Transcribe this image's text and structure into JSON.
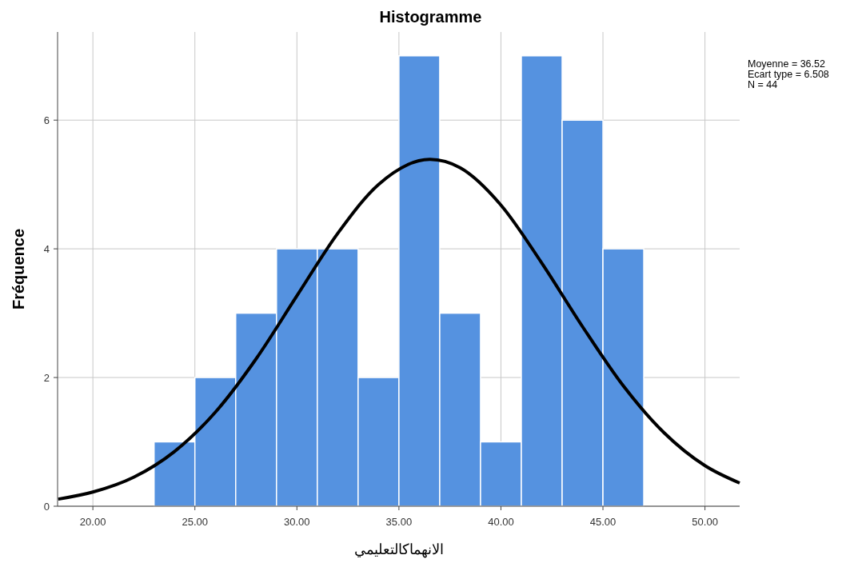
{
  "chart_data": {
    "type": "histogram",
    "title": "Histogramme",
    "xlabel": "الانهماكالتعليمي",
    "ylabel": "Fréquence",
    "series": [
      {
        "color": "#5592e0",
        "bins": [
          23,
          25,
          27,
          29,
          31,
          33,
          35,
          37,
          39,
          41,
          43,
          45,
          47
        ],
        "values": [
          1,
          2,
          3,
          4,
          4,
          2,
          7,
          3,
          1,
          7,
          6,
          4
        ]
      },
      {
        "type": "line",
        "color": "#000000",
        "x": [
          18.3,
          20,
          22,
          24,
          26,
          28,
          30,
          32,
          34,
          36.52,
          38,
          40,
          42,
          44,
          46,
          48,
          50,
          51.7
        ],
        "values": [
          0.11,
          0.22,
          0.45,
          0.85,
          1.46,
          2.29,
          3.27,
          4.24,
          5.0,
          5.39,
          5.26,
          4.68,
          3.78,
          2.79,
          1.87,
          1.14,
          0.63,
          0.36
        ]
      }
    ],
    "xlim": [
      18.27,
      51.7
    ],
    "ylim": [
      0,
      7.37
    ],
    "xticks": [
      {
        "value": 20,
        "label": "20.00"
      },
      {
        "value": 25,
        "label": "25.00"
      },
      {
        "value": 30,
        "label": "30.00"
      },
      {
        "value": 35,
        "label": "35.00"
      },
      {
        "value": 40,
        "label": "40.00"
      },
      {
        "value": 45,
        "label": "45.00"
      },
      {
        "value": 50,
        "label": "50.00"
      }
    ],
    "yticks": [
      0,
      2,
      4,
      6
    ],
    "grid": true,
    "line_style": "solid",
    "marker": "none",
    "annotations": [
      "Moyenne = 36.52",
      "Ecart type = 6.508",
      "N = 44"
    ]
  }
}
